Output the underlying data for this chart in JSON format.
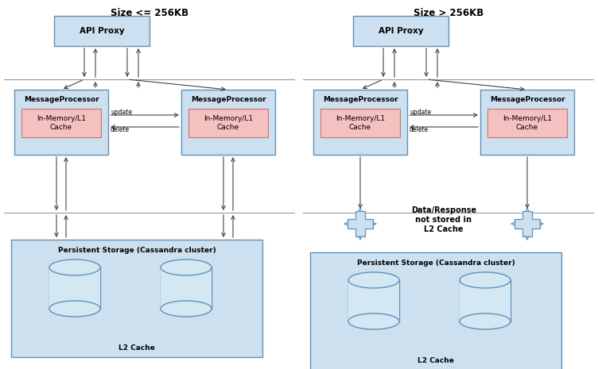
{
  "bg_color": "#ffffff",
  "box_color_blue": "#cce0f0",
  "box_color_pink": "#f5c0c0",
  "box_edge_color": "#6090b8",
  "box_edge_color_pink": "#c07878",
  "line_color": "#444444",
  "sep_line_color": "#999999",
  "title1": "Size <= 256KB",
  "title2": "Size > 256KB",
  "label_api": "API Proxy",
  "label_mp": "MessageProcessor",
  "label_cache_inner": "In-Memory/L1\nCache",
  "label_storage": "Persistent Storage (Cassandra cluster)",
  "label_l2": "L2 Cache",
  "label_update": "update",
  "label_delete": "delete",
  "label_no_cache": "Data/Response\nnot stored in\nL2 Cache",
  "font_title": 8.5,
  "font_label": 7.5,
  "font_mp": 6.5,
  "font_cache": 6.5,
  "font_storage": 6.5,
  "font_l2": 6.5,
  "font_ud": 5.5
}
